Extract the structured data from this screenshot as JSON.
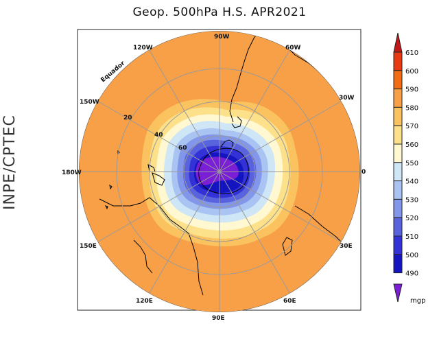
{
  "title": "Geop. 500hPa H.S. APR2021",
  "agency": "INPE/CPTEC",
  "map": {
    "projection": "polar-stereographic-south",
    "longitude_labels": [
      "90W",
      "60W",
      "30W",
      "0",
      "30E",
      "60E",
      "90E",
      "120E",
      "150E",
      "180W",
      "150W",
      "120W"
    ],
    "latitude_labels": [
      "20",
      "40",
      "60"
    ],
    "equator_label": "Equador",
    "field_levels_note": "ocean/land coloured by 500hPa geopotential height"
  },
  "colorbar": {
    "unit": "mgp",
    "levels": [
      "610",
      "600",
      "590",
      "580",
      "570",
      "560",
      "550",
      "540",
      "530",
      "520",
      "510",
      "500",
      "490"
    ],
    "colors": [
      "#c01818",
      "#e83a12",
      "#f26c14",
      "#f7a048",
      "#fbc260",
      "#fde08a",
      "#fff8d0",
      "#cfe6f7",
      "#a9c4f2",
      "#8296ea",
      "#5a63de",
      "#3232d6",
      "#1414c0",
      "#7a1fd6"
    ]
  }
}
